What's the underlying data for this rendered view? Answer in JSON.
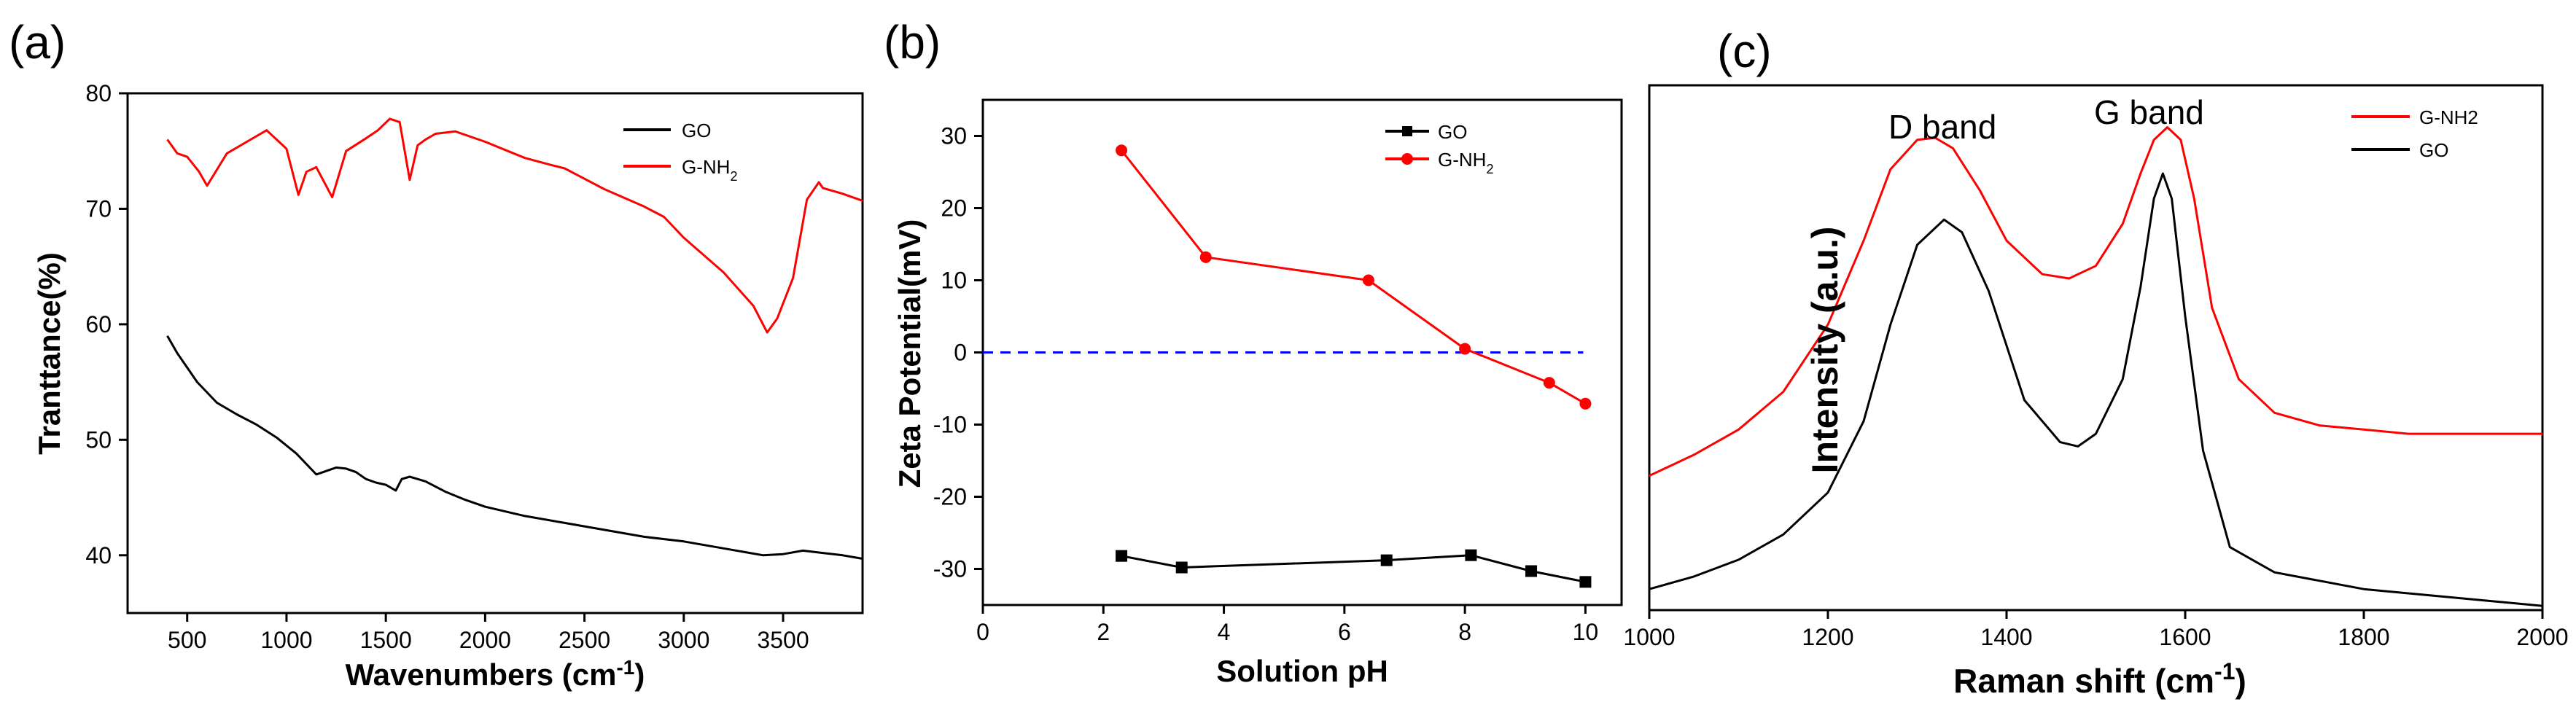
{
  "chart_data": [
    {
      "type": "line",
      "panel_label": "(a)",
      "title": "",
      "xlabel": "Wavenumbers (cm-1)",
      "xlabel_base": "Wavenumbers (cm",
      "xlabel_sup": "-1",
      "xlabel_end": ")",
      "ylabel": "Tranttance(%)",
      "xlim": [
        200,
        3900
      ],
      "ylim": [
        35,
        80
      ],
      "xticks": [
        500,
        1000,
        1500,
        2000,
        2500,
        3000,
        3500
      ],
      "yticks": [
        40,
        50,
        60,
        70,
        80
      ],
      "legend": {
        "position": "top-right",
        "entries": [
          "GO",
          "G-NH2"
        ]
      },
      "legend_labels": {
        "go": "GO",
        "gnh2": "G-NH",
        "gnh2_sub": "2"
      },
      "series": [
        {
          "name": "GO",
          "color": "#000000",
          "x": [
            400,
            450,
            550,
            650,
            750,
            850,
            950,
            1050,
            1150,
            1250,
            1300,
            1350,
            1400,
            1450,
            1500,
            1550,
            1580,
            1620,
            1660,
            1700,
            1800,
            1900,
            2000,
            2200,
            2400,
            2600,
            2800,
            3000,
            3200,
            3400,
            3500,
            3600,
            3700,
            3800,
            3900
          ],
          "y": [
            59,
            57.5,
            55,
            53.2,
            52.2,
            51.3,
            50.2,
            48.8,
            47,
            47.6,
            47.5,
            47.2,
            46.6,
            46.3,
            46.1,
            45.6,
            46.6,
            46.8,
            46.6,
            46.4,
            45.5,
            44.8,
            44.2,
            43.4,
            42.8,
            42.2,
            41.6,
            41.2,
            40.6,
            40,
            40.1,
            40.4,
            40.2,
            40.0,
            39.7
          ]
        },
        {
          "name": "G-NH2",
          "color": "#ff0000",
          "x": [
            400,
            450,
            500,
            560,
            600,
            700,
            800,
            900,
            950,
            1000,
            1060,
            1100,
            1150,
            1230,
            1300,
            1400,
            1460,
            1520,
            1570,
            1620,
            1660,
            1700,
            1750,
            1850,
            2000,
            2200,
            2330,
            2400,
            2600,
            2800,
            2900,
            3000,
            3200,
            3350,
            3420,
            3470,
            3550,
            3620,
            3680,
            3700,
            3800,
            3900
          ],
          "y": [
            76,
            74.8,
            74.5,
            73.2,
            72,
            74.8,
            75.8,
            76.8,
            76,
            75.2,
            71.2,
            73.2,
            73.6,
            71,
            75,
            76.1,
            76.8,
            77.8,
            77.5,
            72.5,
            75.5,
            76,
            76.5,
            76.7,
            75.8,
            74.4,
            73.8,
            73.5,
            71.7,
            70.2,
            69.3,
            67.5,
            64.5,
            61.6,
            59.3,
            60.5,
            64,
            70.8,
            72.3,
            71.8,
            71.3,
            70.7
          ]
        }
      ]
    },
    {
      "type": "line",
      "panel_label": "(b)",
      "title": "",
      "xlabel": "Solution pH",
      "ylabel": "Zeta Potential(mV)",
      "xlim": [
        0,
        10.6
      ],
      "ylim": [
        -35,
        35
      ],
      "xticks": [
        0,
        2,
        4,
        6,
        8,
        10
      ],
      "yticks": [
        -30,
        -20,
        -10,
        0,
        10,
        20,
        30
      ],
      "reference_line": {
        "y": 0,
        "style": "dashed",
        "color": "#0000ff"
      },
      "legend": {
        "position": "top-right",
        "entries": [
          "GO",
          "G-NH2"
        ]
      },
      "legend_labels": {
        "go": "GO",
        "gnh2": "G-NH",
        "gnh2_sub": "2"
      },
      "series": [
        {
          "name": "GO",
          "color": "#000000",
          "marker": "square",
          "x": [
            2.3,
            3.3,
            6.7,
            8.1,
            9.1,
            10.0
          ],
          "y": [
            -28.2,
            -29.8,
            -28.8,
            -28.1,
            -30.3,
            -31.8
          ]
        },
        {
          "name": "G-NH2",
          "color": "#ff0000",
          "marker": "circle",
          "x": [
            2.3,
            3.7,
            6.4,
            8.0,
            9.4,
            10.0
          ],
          "y": [
            28,
            13.2,
            10,
            0.5,
            -4.2,
            -7.1
          ]
        }
      ]
    },
    {
      "type": "line",
      "panel_label": "(c)",
      "title": "",
      "xlabel": "Raman shift (cm-1)",
      "xlabel_base": "Raman shift (cm",
      "xlabel_sup": "-1",
      "xlabel_end": ")",
      "ylabel": "Intensity (a.u.)",
      "xlim": [
        1000,
        2000
      ],
      "ylim": [
        0,
        1.25
      ],
      "xticks": [
        1000,
        1200,
        1400,
        1600,
        1800,
        2000
      ],
      "xtick_labels": [
        "1000",
        "1200",
        "1400",
        "1600",
        "1800",
        "2000"
      ],
      "annotations": [
        "D band",
        "G band"
      ],
      "legend": {
        "position": "top-right",
        "entries": [
          "G-NH2",
          "GO"
        ]
      },
      "series": [
        {
          "name": "G-NH2",
          "color": "#ff0000",
          "x": [
            1000,
            1050,
            1100,
            1150,
            1200,
            1240,
            1270,
            1300,
            1320,
            1340,
            1370,
            1400,
            1440,
            1470,
            1500,
            1530,
            1550,
            1565,
            1580,
            1595,
            1610,
            1630,
            1660,
            1700,
            1750,
            1800,
            1850,
            1900,
            1950,
            2000
          ],
          "y": [
            0.32,
            0.37,
            0.43,
            0.52,
            0.68,
            0.88,
            1.05,
            1.12,
            1.125,
            1.1,
            1.0,
            0.88,
            0.8,
            0.79,
            0.82,
            0.92,
            1.04,
            1.12,
            1.15,
            1.12,
            0.98,
            0.72,
            0.55,
            0.47,
            0.44,
            0.43,
            0.42,
            0.42,
            0.42,
            0.42
          ]
        },
        {
          "name": "GO",
          "color": "#000000",
          "x": [
            1000,
            1050,
            1100,
            1150,
            1200,
            1240,
            1270,
            1300,
            1330,
            1350,
            1380,
            1420,
            1460,
            1480,
            1500,
            1530,
            1550,
            1565,
            1575,
            1585,
            1600,
            1620,
            1650,
            1700,
            1750,
            1800,
            1850,
            1900,
            1950,
            2000
          ],
          "y": [
            0.05,
            0.08,
            0.12,
            0.18,
            0.28,
            0.45,
            0.68,
            0.87,
            0.93,
            0.9,
            0.76,
            0.5,
            0.4,
            0.39,
            0.42,
            0.55,
            0.77,
            0.98,
            1.04,
            0.98,
            0.7,
            0.38,
            0.15,
            0.09,
            0.07,
            0.05,
            0.04,
            0.03,
            0.02,
            0.01
          ]
        }
      ]
    }
  ]
}
